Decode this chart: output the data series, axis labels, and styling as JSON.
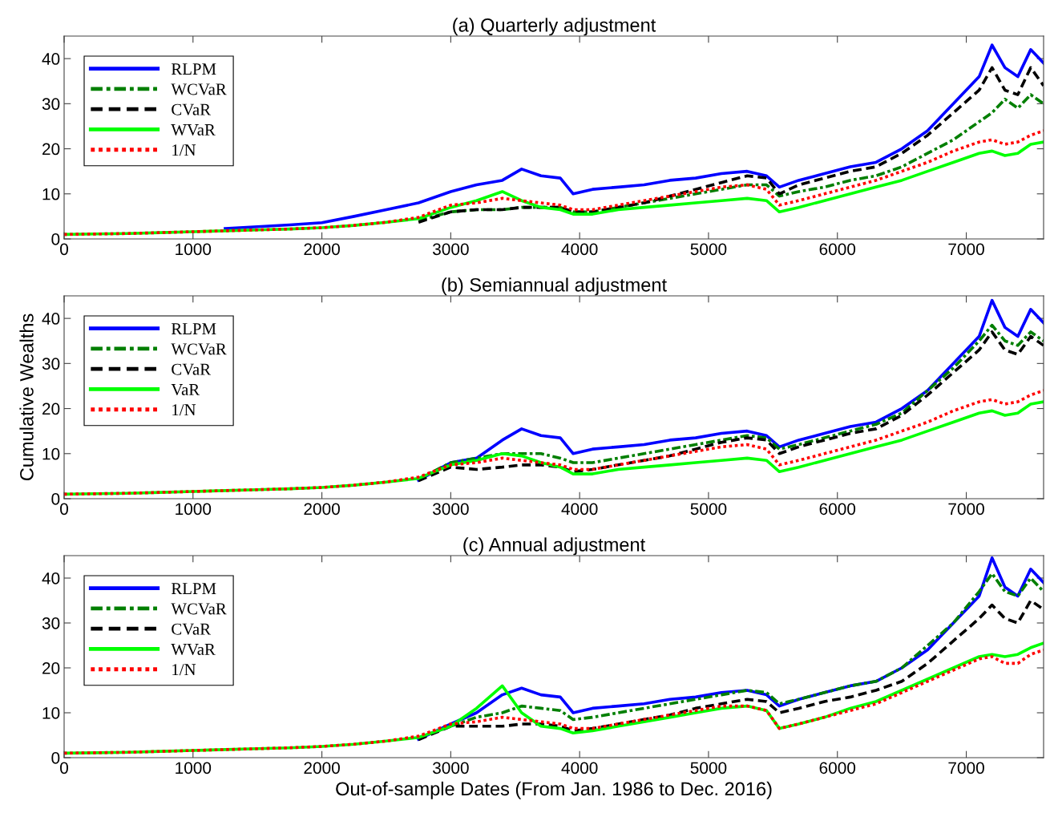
{
  "chart_data": [
    {
      "type": "line",
      "title": "(a) Quarterly adjustment",
      "legend": "top left",
      "grid": false,
      "xlim": [
        0,
        7600
      ],
      "ylim": [
        0,
        45
      ],
      "xticks": [
        0,
        1000,
        2000,
        3000,
        4000,
        5000,
        6000,
        7000
      ],
      "yticks": [
        0,
        10,
        20,
        30,
        40
      ],
      "x": [
        0,
        250,
        500,
        750,
        1000,
        1250,
        1500,
        1750,
        2000,
        2250,
        2500,
        2750,
        3000,
        3200,
        3400,
        3550,
        3700,
        3850,
        3950,
        4100,
        4300,
        4500,
        4700,
        4900,
        5100,
        5300,
        5450,
        5550,
        5700,
        5900,
        6100,
        6300,
        6500,
        6700,
        6900,
        7100,
        7200,
        7300,
        7400,
        7500,
        7600
      ],
      "series": [
        {
          "name": "RLPM",
          "color": "#0000ff",
          "line_style": "solid",
          "values": [
            null,
            null,
            null,
            null,
            null,
            2.3,
            2.7,
            3.1,
            3.6,
            5,
            6.5,
            8,
            10.5,
            12,
            13,
            15.5,
            14,
            13.5,
            10,
            11,
            11.5,
            12,
            13,
            13.5,
            14.5,
            15,
            14,
            11.5,
            13,
            14.5,
            16,
            17,
            20,
            24,
            30,
            36,
            43,
            38,
            36,
            42,
            39
          ]
        },
        {
          "name": "WCVaR",
          "color": "#007f00",
          "line_style": "dashdot",
          "values": [
            null,
            null,
            null,
            null,
            null,
            null,
            null,
            null,
            null,
            null,
            null,
            4.1,
            6,
            6.5,
            6.5,
            7,
            7,
            7,
            6,
            6,
            7,
            8,
            9,
            10,
            11,
            12,
            12,
            9.5,
            10.5,
            11.5,
            13,
            14,
            16,
            19,
            22,
            26,
            28,
            31,
            29,
            32,
            30
          ]
        },
        {
          "name": "CVaR",
          "color": "#000000",
          "line_style": "dashed",
          "values": [
            null,
            null,
            null,
            null,
            null,
            null,
            null,
            null,
            null,
            null,
            null,
            3.7,
            6,
            6.5,
            6.5,
            7,
            7,
            7,
            6,
            6,
            7,
            8,
            9.5,
            11,
            12.5,
            14,
            13.5,
            10,
            12,
            13.5,
            15,
            16,
            19,
            23,
            28,
            33,
            38,
            33,
            32,
            38,
            34
          ]
        },
        {
          "name": "WVaR",
          "color": "#00ff00",
          "line_style": "solid",
          "values": [
            1,
            1.1,
            1.2,
            1.4,
            1.6,
            1.8,
            2,
            2.2,
            2.5,
            3,
            3.7,
            4.5,
            7,
            8.5,
            10.5,
            8.5,
            7,
            6.5,
            5.5,
            5.5,
            6.5,
            7,
            7.5,
            8,
            8.5,
            9,
            8.5,
            6,
            7,
            8.5,
            10,
            11.5,
            13,
            15,
            17,
            19,
            19.5,
            18.5,
            19,
            21,
            21.5
          ]
        },
        {
          "name": "1/N",
          "color": "#ff0000",
          "line_style": "dotted",
          "values": [
            1,
            1.1,
            1.2,
            1.4,
            1.6,
            1.8,
            2,
            2.2,
            2.5,
            3,
            3.7,
            4.8,
            7.5,
            8,
            9,
            8.5,
            8,
            7.5,
            6.5,
            6.5,
            7.5,
            8.5,
            9.5,
            10.5,
            11.5,
            12,
            11,
            7.5,
            8.5,
            10,
            11.5,
            13,
            15,
            17,
            19.5,
            21.5,
            22,
            21,
            21.5,
            23,
            24
          ]
        }
      ]
    },
    {
      "type": "line",
      "title": "(b) Semiannual adjustment",
      "ylabel": "Cumulative Wealths",
      "legend": "top left",
      "grid": false,
      "xlim": [
        0,
        7600
      ],
      "ylim": [
        0,
        45
      ],
      "xticks": [
        0,
        1000,
        2000,
        3000,
        4000,
        5000,
        6000,
        7000
      ],
      "yticks": [
        0,
        10,
        20,
        30,
        40
      ],
      "x": [
        0,
        250,
        500,
        750,
        1000,
        1250,
        1500,
        1750,
        2000,
        2250,
        2500,
        2750,
        3000,
        3200,
        3400,
        3550,
        3700,
        3850,
        3950,
        4100,
        4300,
        4500,
        4700,
        4900,
        5100,
        5300,
        5450,
        5550,
        5700,
        5900,
        6100,
        6300,
        6500,
        6700,
        6900,
        7100,
        7200,
        7300,
        7400,
        7500,
        7600
      ],
      "series": [
        {
          "name": "RLPM",
          "color": "#0000ff",
          "line_style": "solid",
          "values": [
            null,
            null,
            null,
            null,
            null,
            null,
            null,
            null,
            null,
            null,
            null,
            4.1,
            8,
            9,
            13,
            15.5,
            14,
            13.5,
            10,
            11,
            11.5,
            12,
            13,
            13.5,
            14.5,
            15,
            14,
            11.5,
            13,
            14.5,
            16,
            17,
            20,
            24,
            30,
            36,
            44,
            38,
            36,
            42,
            39
          ]
        },
        {
          "name": "WCVaR",
          "color": "#007f00",
          "line_style": "dashdot",
          "values": [
            null,
            null,
            null,
            null,
            null,
            null,
            null,
            null,
            null,
            null,
            null,
            4.4,
            8,
            9,
            10,
            10,
            10,
            9,
            8,
            8,
            9,
            10,
            11,
            12,
            13,
            14,
            13.5,
            11,
            12,
            13.5,
            15,
            16.5,
            19,
            24,
            29,
            35,
            38.5,
            35,
            34,
            37,
            35
          ]
        },
        {
          "name": "CVaR",
          "color": "#000000",
          "line_style": "dashed",
          "values": [
            null,
            null,
            null,
            null,
            null,
            null,
            null,
            null,
            null,
            null,
            null,
            4.0,
            7,
            6.5,
            7,
            7.5,
            7.5,
            7,
            6,
            6.5,
            7.5,
            8.5,
            9.5,
            11,
            12.5,
            13.5,
            13,
            10,
            11.5,
            13,
            14.5,
            15.5,
            18.5,
            23,
            28,
            33,
            37,
            33,
            32,
            36,
            34
          ]
        },
        {
          "name": "VaR",
          "color": "#00ff00",
          "line_style": "solid",
          "values": [
            1,
            1.1,
            1.2,
            1.4,
            1.6,
            1.8,
            2,
            2.2,
            2.5,
            3,
            3.7,
            4.5,
            7.5,
            8.5,
            10,
            9.5,
            8,
            7,
            5.5,
            5.5,
            6.5,
            7,
            7.5,
            8,
            8.5,
            9,
            8.5,
            6,
            7,
            8.5,
            10,
            11.5,
            13,
            15,
            17,
            19,
            19.5,
            18.5,
            19,
            21,
            21.5
          ]
        },
        {
          "name": "1/N",
          "color": "#ff0000",
          "line_style": "dotted",
          "values": [
            1,
            1.1,
            1.2,
            1.4,
            1.6,
            1.8,
            2,
            2.2,
            2.5,
            3,
            3.7,
            4.8,
            7.5,
            8,
            9,
            8.5,
            8,
            7.5,
            6.5,
            6.5,
            7.5,
            8.5,
            9.5,
            10.5,
            11.5,
            12,
            11,
            7.5,
            8.5,
            10,
            11.5,
            13,
            15,
            17,
            19.5,
            21.5,
            22,
            21,
            21.5,
            23,
            24
          ]
        }
      ]
    },
    {
      "type": "line",
      "title": "(c) Annual adjustment",
      "xlabel": "Out-of-sample Dates (From Jan. 1986 to Dec. 2016)",
      "legend": "top left",
      "grid": false,
      "xlim": [
        0,
        7600
      ],
      "ylim": [
        0,
        45
      ],
      "xticks": [
        0,
        1000,
        2000,
        3000,
        4000,
        5000,
        6000,
        7000
      ],
      "yticks": [
        0,
        10,
        20,
        30,
        40
      ],
      "x": [
        0,
        250,
        500,
        750,
        1000,
        1250,
        1500,
        1750,
        2000,
        2250,
        2500,
        2750,
        3000,
        3200,
        3400,
        3550,
        3700,
        3850,
        3950,
        4100,
        4300,
        4500,
        4700,
        4900,
        5100,
        5300,
        5450,
        5550,
        5700,
        5900,
        6100,
        6300,
        6500,
        6700,
        6900,
        7100,
        7200,
        7300,
        7400,
        7500,
        7600
      ],
      "series": [
        {
          "name": "RLPM",
          "color": "#0000ff",
          "line_style": "solid",
          "values": [
            null,
            null,
            null,
            null,
            null,
            null,
            null,
            null,
            null,
            null,
            null,
            4.1,
            7.5,
            10,
            14,
            15.5,
            14,
            13.5,
            10,
            11,
            11.5,
            12,
            13,
            13.5,
            14.5,
            15,
            14,
            11.5,
            13,
            14.5,
            16,
            17,
            20,
            24,
            30,
            36,
            44.5,
            38,
            36,
            42,
            39
          ]
        },
        {
          "name": "WCVaR",
          "color": "#007f00",
          "line_style": "dashdot",
          "values": [
            null,
            null,
            null,
            null,
            null,
            null,
            null,
            null,
            null,
            null,
            null,
            4.4,
            7,
            9,
            10,
            11.5,
            11,
            10.5,
            8.5,
            9,
            10,
            11,
            12,
            13,
            14,
            15,
            14.5,
            12,
            13,
            14.5,
            16,
            17,
            20,
            25,
            30,
            37,
            41,
            37,
            36,
            40,
            37
          ]
        },
        {
          "name": "CVaR",
          "color": "#000000",
          "line_style": "dashed",
          "values": [
            null,
            null,
            null,
            null,
            null,
            null,
            null,
            null,
            null,
            null,
            null,
            4.0,
            7,
            7,
            7,
            7.5,
            7.5,
            7,
            6,
            6.5,
            7.5,
            8.5,
            9.5,
            11,
            12,
            13,
            12.5,
            10,
            11,
            12.5,
            13.5,
            15,
            17,
            21,
            26,
            31,
            34,
            31,
            30,
            35,
            33
          ]
        },
        {
          "name": "WVaR",
          "color": "#00ff00",
          "line_style": "solid",
          "values": [
            1,
            1.1,
            1.2,
            1.4,
            1.6,
            1.8,
            2,
            2.2,
            2.5,
            3,
            3.7,
            4.5,
            7,
            11,
            16,
            10,
            7,
            6.5,
            5.5,
            6,
            7,
            8,
            9,
            10,
            11,
            11.5,
            10.5,
            6.5,
            7.5,
            9,
            11,
            12.5,
            15,
            17.5,
            20,
            22.5,
            23,
            22.5,
            23,
            24.5,
            25.5
          ]
        },
        {
          "name": "1/N",
          "color": "#ff0000",
          "line_style": "dotted",
          "values": [
            1,
            1.1,
            1.2,
            1.4,
            1.6,
            1.8,
            2,
            2.2,
            2.5,
            3,
            3.7,
            4.8,
            7.5,
            8,
            9,
            8.5,
            8,
            7.5,
            6.5,
            6.5,
            7.5,
            8.5,
            9.5,
            10.5,
            11.5,
            11.5,
            10.5,
            6.5,
            7.5,
            9,
            10.5,
            12,
            14.5,
            17,
            19.5,
            22,
            22.5,
            21,
            21,
            23,
            24
          ]
        }
      ]
    }
  ]
}
